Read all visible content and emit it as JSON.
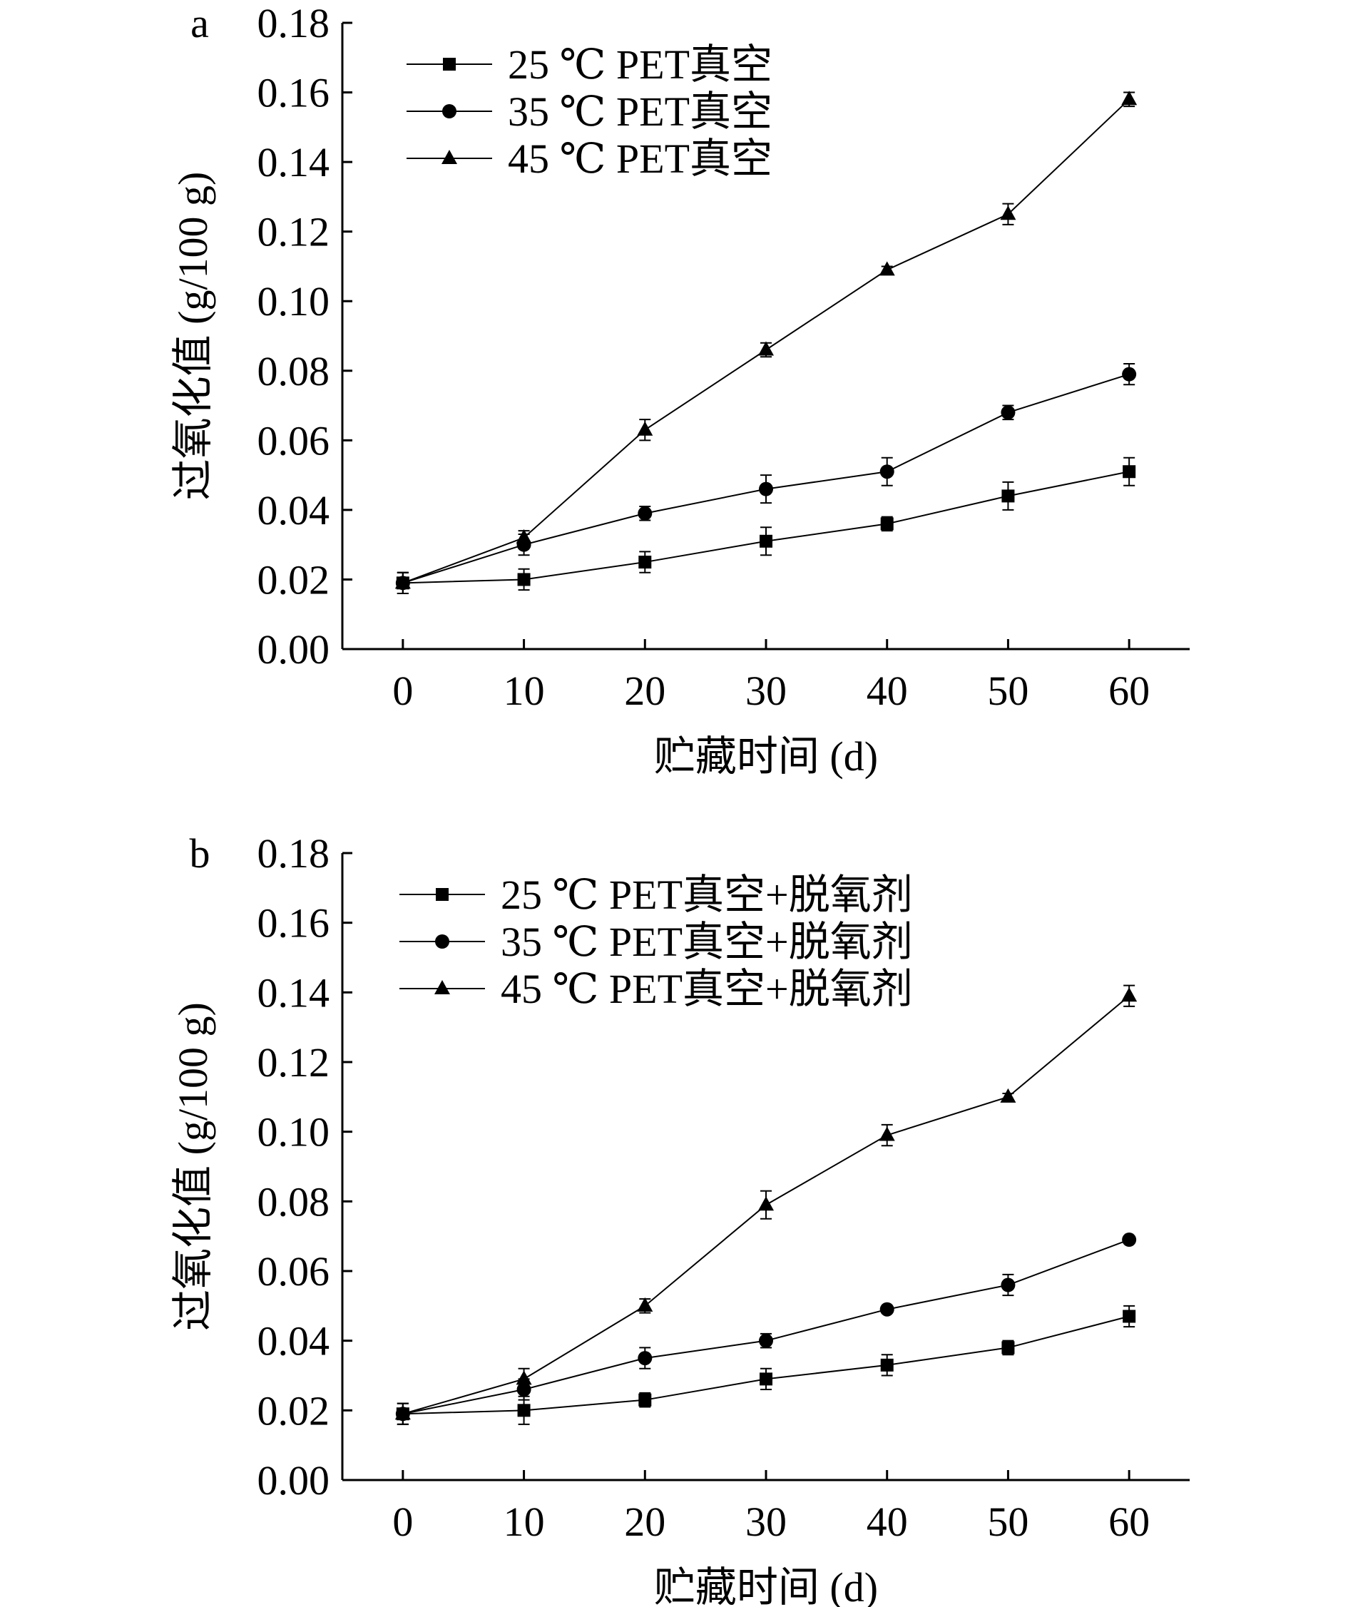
{
  "chart_data": [
    {
      "type": "line",
      "panel_label": "a",
      "title": "",
      "xlabel": "贮藏时间 (d)",
      "ylabel": "过氧化值 (g/100 g)",
      "x": [
        0,
        10,
        20,
        30,
        40,
        50,
        60
      ],
      "xlim": [
        -5,
        65
      ],
      "ylim": [
        0,
        0.18
      ],
      "xticks": [
        "0",
        "10",
        "20",
        "30",
        "40",
        "50",
        "60"
      ],
      "yticks": [
        "0.00",
        "0.02",
        "0.04",
        "0.06",
        "0.08",
        "0.10",
        "0.12",
        "0.14",
        "0.16",
        "0.18"
      ],
      "grid": false,
      "legend_position": "top-left",
      "series": [
        {
          "name": "25 ℃ PET真空",
          "marker": "square",
          "values": [
            0.019,
            0.02,
            0.025,
            0.031,
            0.036,
            0.044,
            0.051
          ],
          "errors": [
            0.003,
            0.003,
            0.003,
            0.004,
            0.002,
            0.004,
            0.004
          ]
        },
        {
          "name": "35 ℃ PET真空",
          "marker": "circle",
          "values": [
            0.019,
            0.03,
            0.039,
            0.046,
            0.051,
            0.068,
            0.079
          ],
          "errors": [
            0.003,
            0.003,
            0.002,
            0.004,
            0.004,
            0.002,
            0.003
          ]
        },
        {
          "name": "45 ℃ PET真空",
          "marker": "triangle",
          "values": [
            0.019,
            0.032,
            0.063,
            0.086,
            0.109,
            0.125,
            0.158
          ],
          "errors": [
            0.003,
            0.002,
            0.003,
            0.002,
            0.001,
            0.003,
            0.002
          ]
        }
      ]
    },
    {
      "type": "line",
      "panel_label": "b",
      "title": "",
      "xlabel": "贮藏时间 (d)",
      "ylabel": "过氧化值 (g/100 g)",
      "x": [
        0,
        10,
        20,
        30,
        40,
        50,
        60
      ],
      "xlim": [
        -5,
        65
      ],
      "ylim": [
        0,
        0.18
      ],
      "xticks": [
        "0",
        "10",
        "20",
        "30",
        "40",
        "50",
        "60"
      ],
      "yticks": [
        "0.00",
        "0.02",
        "0.04",
        "0.06",
        "0.08",
        "0.10",
        "0.12",
        "0.14",
        "0.16",
        "0.18"
      ],
      "grid": false,
      "legend_position": "top-left",
      "series": [
        {
          "name": "25 ℃ PET真空+脱氧剂",
          "marker": "square",
          "values": [
            0.019,
            0.02,
            0.023,
            0.029,
            0.033,
            0.038,
            0.047
          ],
          "errors": [
            0.003,
            0.004,
            0.002,
            0.003,
            0.003,
            0.002,
            0.003
          ]
        },
        {
          "name": "35 ℃ PET真空+脱氧剂",
          "marker": "circle",
          "values": [
            0.019,
            0.026,
            0.035,
            0.04,
            0.049,
            0.056,
            0.069
          ],
          "errors": [
            0.003,
            0.003,
            0.003,
            0.002,
            0.001,
            0.003,
            0.001
          ]
        },
        {
          "name": "45 ℃ PET真空+脱氧剂",
          "marker": "triangle",
          "values": [
            0.019,
            0.029,
            0.05,
            0.079,
            0.099,
            0.11,
            0.139
          ],
          "errors": [
            0.003,
            0.003,
            0.002,
            0.004,
            0.003,
            0.001,
            0.003
          ]
        }
      ]
    }
  ]
}
